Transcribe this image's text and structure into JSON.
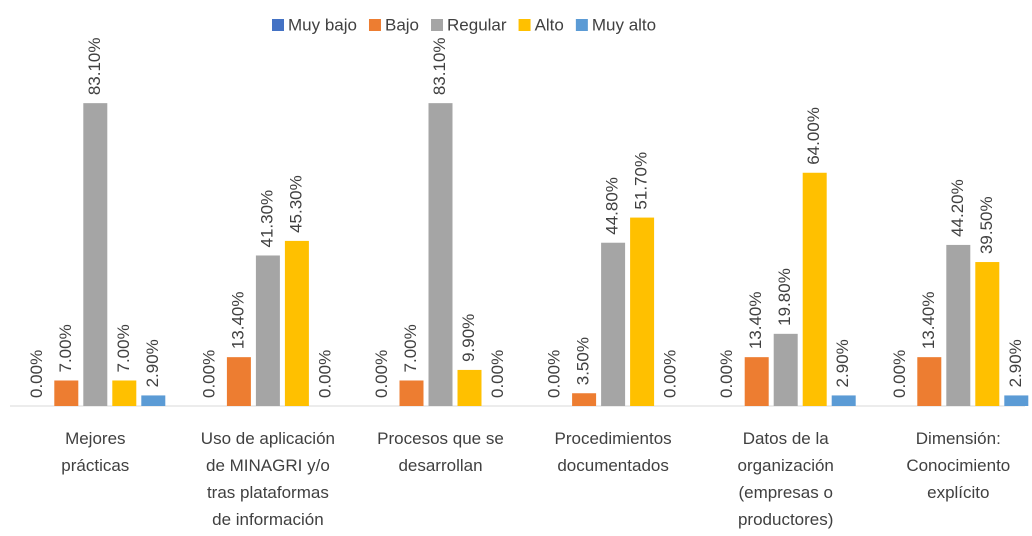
{
  "chart_data": {
    "type": "bar",
    "categories": [
      "Mejores\nprácticas",
      "Uso de aplicación\nde MINAGRI  y/o\ntras plataformas\nde información",
      "Procesos que se\ndesarrollan",
      "Procedimientos\ndocumentados",
      "Datos de la\norganización\n(empresas o\nproductores)",
      "Dimensión:\nConocimiento\nexplícito"
    ],
    "series": [
      {
        "name": "Muy bajo",
        "color": "#4472c4",
        "values": [
          0,
          0,
          0,
          0,
          0,
          0
        ],
        "value_labels": [
          "0.00%",
          "0.00%",
          "0.00%",
          "0.00%",
          "0.00%",
          "0.00%"
        ]
      },
      {
        "name": "Bajo",
        "color": "#ed7d31",
        "values": [
          7,
          13.4,
          7,
          3.5,
          13.4,
          13.4
        ],
        "value_labels": [
          "7.00%",
          "13.40%",
          "7.00%",
          "3.50%",
          "13.40%",
          "13.40%"
        ]
      },
      {
        "name": "Regular",
        "color": "#a5a5a5",
        "values": [
          83.1,
          41.3,
          83.1,
          44.8,
          19.8,
          44.2
        ],
        "value_labels": [
          "83.10%",
          "41.30%",
          "83.10%",
          "44.80%",
          "19.80%",
          "44.20%"
        ]
      },
      {
        "name": "Alto",
        "color": "#ffc000",
        "values": [
          7,
          45.3,
          9.9,
          51.7,
          64,
          39.5
        ],
        "value_labels": [
          "7.00%",
          "45.30%",
          "9.90%",
          "51.70%",
          "64.00%",
          "39.50%"
        ]
      },
      {
        "name": "Muy alto",
        "color": "#5b9bd5",
        "values": [
          2.9,
          0,
          0,
          0,
          2.9,
          2.9
        ],
        "value_labels": [
          "2.90%",
          "0.00%",
          "0.00%",
          "0.00%",
          "2.90%",
          "2.90%"
        ]
      }
    ],
    "ylim": [
      0,
      90
    ],
    "legend": "top"
  }
}
